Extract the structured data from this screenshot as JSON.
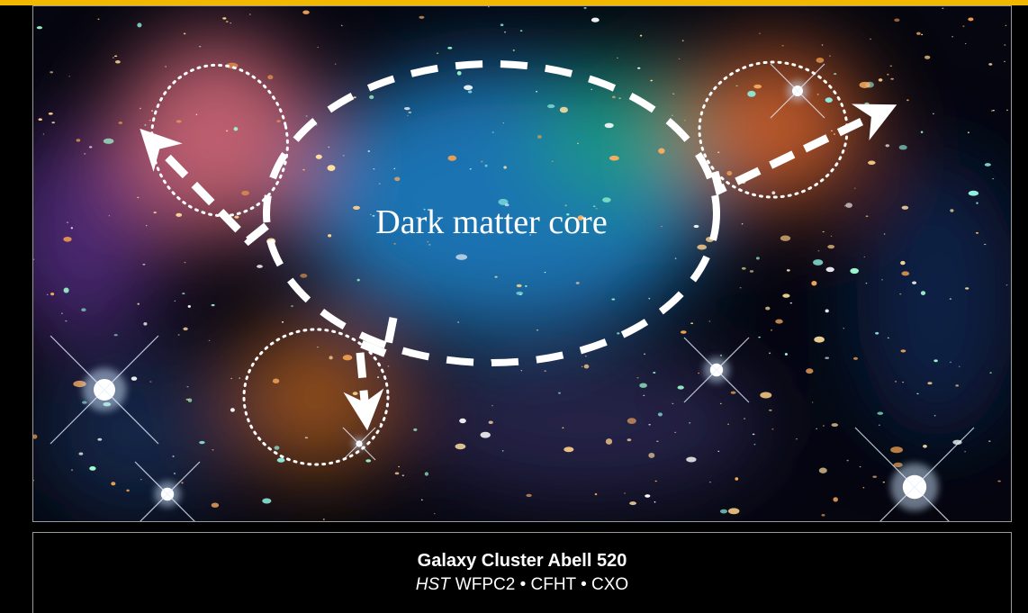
{
  "annotation": "Dark matter core",
  "caption": {
    "title": "Galaxy Cluster Abell 520",
    "instrument": "HST",
    "credits": "WFPC2 • CFHT • CXO"
  }
}
